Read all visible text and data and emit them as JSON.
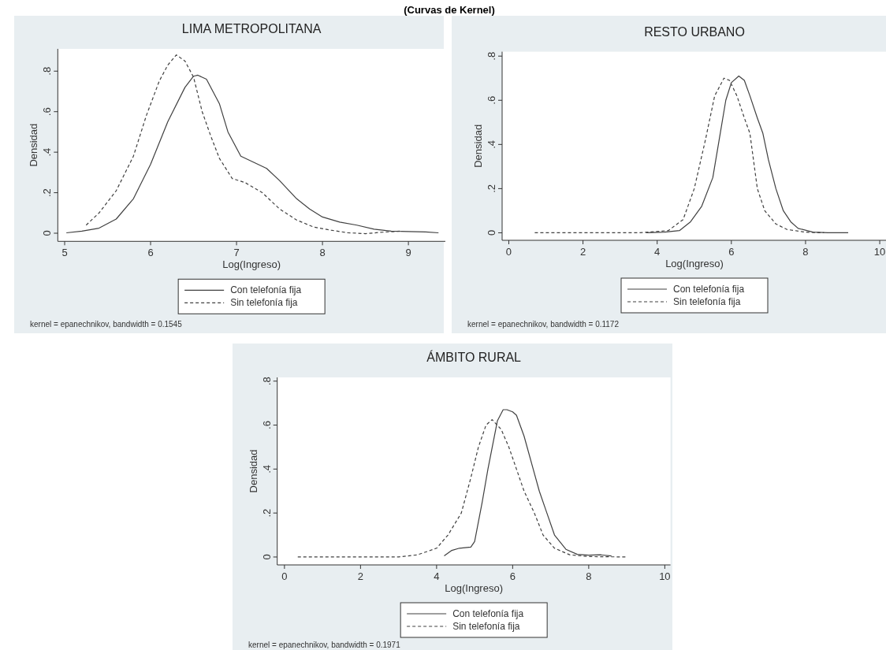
{
  "chart_data": [
    {
      "type": "line",
      "title": "LIMA METROPOLITANA",
      "xlabel": "Log(Ingreso)",
      "ylabel": "Densidad",
      "xlim": [
        4.92,
        9.43
      ],
      "xticks": [
        5,
        6,
        7,
        8,
        9
      ],
      "ylim": [
        -0.04,
        0.91
      ],
      "yticks": [
        {
          "value": 0,
          "label": "0"
        },
        {
          "value": 0.2,
          "label": ".2"
        },
        {
          "value": 0.4,
          "label": ".4"
        },
        {
          "value": 0.6,
          "label": ".6"
        },
        {
          "value": 0.8,
          "label": ".8"
        }
      ],
      "legend": "bottom",
      "marker": "none",
      "grid": false,
      "annotations": [
        "(Curvas de Kernel)",
        "kernel = epanechnikov, bandwidth = 0.1545"
      ],
      "series": [
        {
          "name": "Con telefonía fija",
          "color": "#404040",
          "line_style": "solid",
          "x": [
            5.02,
            5.2,
            5.4,
            5.6,
            5.8,
            6.0,
            6.2,
            6.4,
            6.5,
            6.55,
            6.65,
            6.8,
            6.9,
            7.05,
            7.2,
            7.35,
            7.5,
            7.7,
            7.85,
            8.0,
            8.2,
            8.4,
            8.6,
            8.8,
            9.0,
            9.2,
            9.35
          ],
          "values": [
            0.002,
            0.01,
            0.025,
            0.07,
            0.17,
            0.34,
            0.55,
            0.72,
            0.775,
            0.78,
            0.76,
            0.64,
            0.5,
            0.38,
            0.35,
            0.32,
            0.26,
            0.17,
            0.12,
            0.08,
            0.055,
            0.04,
            0.02,
            0.01,
            0.008,
            0.006,
            0.002
          ]
        },
        {
          "name": "Sin telefonía fija",
          "color": "#404040",
          "line_style": "dashed",
          "x": [
            5.25,
            5.4,
            5.6,
            5.8,
            5.95,
            6.1,
            6.2,
            6.3,
            6.4,
            6.5,
            6.6,
            6.7,
            6.8,
            6.95,
            7.1,
            7.3,
            7.5,
            7.7,
            7.9,
            8.1,
            8.3,
            8.5,
            8.7,
            8.9
          ],
          "values": [
            0.04,
            0.1,
            0.21,
            0.38,
            0.58,
            0.75,
            0.83,
            0.88,
            0.85,
            0.77,
            0.6,
            0.48,
            0.37,
            0.27,
            0.25,
            0.2,
            0.12,
            0.065,
            0.03,
            0.015,
            0.002,
            -0.002,
            0.005,
            0.01
          ]
        }
      ]
    },
    {
      "type": "line",
      "title": "RESTO URBANO",
      "xlabel": "Log(Ingreso)",
      "ylabel": "Densidad",
      "xlim": [
        -0.18,
        10.19
      ],
      "xticks": [
        0,
        2,
        4,
        6,
        8,
        10
      ],
      "ylim": [
        -0.034,
        0.82
      ],
      "yticks": [
        {
          "value": 0,
          "label": "0"
        },
        {
          "value": 0.2,
          "label": ".2"
        },
        {
          "value": 0.4,
          "label": ".4"
        },
        {
          "value": 0.6,
          "label": ".6"
        },
        {
          "value": 0.8,
          "label": ".8"
        }
      ],
      "legend": "bottom",
      "marker": "none",
      "grid": false,
      "annotations": [
        "kernel = epanechnikov, bandwidth = 0.1172"
      ],
      "series": [
        {
          "name": "Con telefonía fija",
          "color": "#404040",
          "line_style": "solid",
          "x": [
            3.7,
            4.2,
            4.6,
            4.9,
            5.2,
            5.5,
            5.7,
            5.85,
            6.0,
            6.2,
            6.35,
            6.5,
            6.7,
            6.85,
            7.0,
            7.2,
            7.4,
            7.6,
            7.8,
            8.2,
            8.6,
            9.15
          ],
          "values": [
            0,
            0.003,
            0.01,
            0.05,
            0.12,
            0.25,
            0.45,
            0.6,
            0.68,
            0.71,
            0.69,
            0.62,
            0.52,
            0.45,
            0.33,
            0.2,
            0.1,
            0.05,
            0.02,
            0.003,
            0,
            0
          ]
        },
        {
          "name": "Sin telefonía fija",
          "color": "#404040",
          "line_style": "dashed",
          "x": [
            0.7,
            2,
            3.5,
            4.3,
            4.7,
            5.0,
            5.3,
            5.55,
            5.8,
            5.95,
            6.15,
            6.35,
            6.5,
            6.7,
            6.9,
            7.2,
            7.5,
            8.0,
            8.5
          ],
          "values": [
            0,
            0,
            0,
            0.01,
            0.06,
            0.2,
            0.42,
            0.62,
            0.7,
            0.69,
            0.62,
            0.52,
            0.45,
            0.2,
            0.1,
            0.04,
            0.015,
            0.003,
            0
          ]
        }
      ]
    },
    {
      "type": "line",
      "title": "ÁMBITO RURAL",
      "xlabel": "Log(Ingreso)",
      "ylabel": "Densidad",
      "xlim": [
        -0.19,
        10.15
      ],
      "xticks": [
        0,
        2,
        4,
        6,
        8,
        10
      ],
      "ylim": [
        -0.036,
        0.817
      ],
      "yticks": [
        {
          "value": 0,
          "label": "0"
        },
        {
          "value": 0.2,
          "label": ".2"
        },
        {
          "value": 0.4,
          "label": ".4"
        },
        {
          "value": 0.6,
          "label": ".6"
        },
        {
          "value": 0.8,
          "label": ".8"
        }
      ],
      "legend": "bottom",
      "marker": "none",
      "grid": false,
      "annotations": [
        "kernel = epanechnikov, bandwidth = 0.1971"
      ],
      "series": [
        {
          "name": "Con telefonía fija",
          "color": "#404040",
          "line_style": "solid",
          "x": [
            4.2,
            4.4,
            4.6,
            4.9,
            5.0,
            5.2,
            5.35,
            5.6,
            5.75,
            5.85,
            6.0,
            6.1,
            6.3,
            6.54,
            6.7,
            6.9,
            7.1,
            7.4,
            7.7,
            8.0,
            8.3,
            8.6
          ],
          "values": [
            0.005,
            0.03,
            0.04,
            0.045,
            0.07,
            0.25,
            0.4,
            0.62,
            0.67,
            0.67,
            0.66,
            0.645,
            0.55,
            0.4,
            0.3,
            0.2,
            0.1,
            0.035,
            0.012,
            0.008,
            0.01,
            0.005
          ]
        },
        {
          "name": "Sin telefonía fija",
          "color": "#404040",
          "line_style": "dashed",
          "x": [
            0.35,
            2,
            3,
            3.5,
            4.0,
            4.3,
            4.65,
            4.9,
            5.1,
            5.3,
            5.46,
            5.7,
            5.9,
            6.1,
            6.3,
            6.57,
            6.8,
            7.1,
            7.5,
            8.0,
            9.0
          ],
          "values": [
            0,
            0,
            0,
            0.01,
            0.04,
            0.1,
            0.2,
            0.36,
            0.5,
            0.6,
            0.625,
            0.58,
            0.5,
            0.4,
            0.3,
            0.2,
            0.1,
            0.04,
            0.01,
            0.002,
            0
          ]
        }
      ]
    }
  ]
}
